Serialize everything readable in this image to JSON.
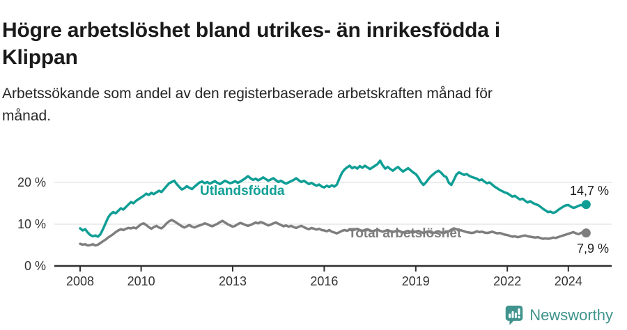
{
  "header": {
    "title_lines": [
      "Högre arbetslöshet bland utrikes- än inrikesfödda i",
      "Klippan"
    ],
    "subtitle_lines": [
      "Arbetssökande som andel av den registerbaserade arbetskraften månad för",
      "månad."
    ]
  },
  "footer": {
    "brand": "Newsworthy",
    "logo_icon": "bar-chart-speech-bubble-icon",
    "brand_color": "#40948d"
  },
  "chart_data": {
    "type": "line",
    "title": "",
    "xlabel": "",
    "ylabel": "",
    "y_unit": "%",
    "frequency": "monthly",
    "start": "2008-01",
    "end": "2024-08",
    "x_start_year": 2008,
    "x_tick_years": [
      2008,
      2010,
      2013,
      2016,
      2019,
      2022,
      2024
    ],
    "x_tick_labels": [
      "2008",
      "2010",
      "2013",
      "2016",
      "2019",
      "2022",
      "2024"
    ],
    "y_ticks": [
      0,
      10,
      20
    ],
    "y_tick_suffix": " %",
    "ylim": [
      0,
      27
    ],
    "grid": "horizontal",
    "legend_position": "inline-on-line",
    "colors": {
      "axis": "#2f2f2f",
      "grid": "#d8d8d8",
      "tick_text": "#333333",
      "value_label": "#1a1a1a"
    },
    "series": [
      {
        "name": "Utlandsfödda",
        "color": "#0f9e95",
        "end_value": 14.7,
        "end_label": "14,7 %",
        "values": [
          9.0,
          8.5,
          8.8,
          8.0,
          7.4,
          7.1,
          7.3,
          7.0,
          7.6,
          8.8,
          10.2,
          11.6,
          12.4,
          12.9,
          12.6,
          13.2,
          13.8,
          13.5,
          14.1,
          14.7,
          15.3,
          15.0,
          15.6,
          16.0,
          16.4,
          16.8,
          17.3,
          17.0,
          17.5,
          17.2,
          17.6,
          18.0,
          17.7,
          18.4,
          19.1,
          19.8,
          20.1,
          20.4,
          19.6,
          18.9,
          18.3,
          18.6,
          19.1,
          18.7,
          18.4,
          19.0,
          19.5,
          20.0,
          20.2,
          19.8,
          20.1,
          19.7,
          20.0,
          20.3,
          19.9,
          19.6,
          20.0,
          20.4,
          20.1,
          19.8,
          20.0,
          20.3,
          19.9,
          20.2,
          20.6,
          21.0,
          21.5,
          21.0,
          20.6,
          20.9,
          20.5,
          20.8,
          21.2,
          20.8,
          20.4,
          20.7,
          21.0,
          20.5,
          20.1,
          20.4,
          20.0,
          19.7,
          20.0,
          20.3,
          20.6,
          21.0,
          20.5,
          20.1,
          20.4,
          20.0,
          19.6,
          19.9,
          19.5,
          19.2,
          19.5,
          19.0,
          18.8,
          19.2,
          18.9,
          19.3,
          19.0,
          19.5,
          21.0,
          22.3,
          23.1,
          23.6,
          24.0,
          23.4,
          23.7,
          23.3,
          23.9,
          23.5,
          24.0,
          23.6,
          23.2,
          23.6,
          24.0,
          24.4,
          25.2,
          24.1,
          23.3,
          23.7,
          23.2,
          22.8,
          23.3,
          23.7,
          23.1,
          22.6,
          23.0,
          23.4,
          22.9,
          22.4,
          22.0,
          21.2,
          20.1,
          19.4,
          20.0,
          20.8,
          21.5,
          22.0,
          22.5,
          22.8,
          22.3,
          21.6,
          21.3,
          19.9,
          19.4,
          20.6,
          21.9,
          22.4,
          22.1,
          21.8,
          22.0,
          21.6,
          21.3,
          21.1,
          20.9,
          20.5,
          20.7,
          20.2,
          19.8,
          20.0,
          19.5,
          19.0,
          18.6,
          18.2,
          17.9,
          17.6,
          17.4,
          17.0,
          16.6,
          16.8,
          16.3,
          15.9,
          16.1,
          15.6,
          15.2,
          15.5,
          15.1,
          14.8,
          14.6,
          14.2,
          13.7,
          13.3,
          12.9,
          13.0,
          12.7,
          12.9,
          13.4,
          13.8,
          14.2,
          14.5,
          14.6,
          14.2,
          13.9,
          14.1,
          14.4,
          14.6,
          14.4,
          14.7
        ]
      },
      {
        "name": "Total arbetslöshet",
        "color": "#7e7e7e",
        "end_value": 7.9,
        "end_label": "7,9 %",
        "values": [
          5.3,
          5.1,
          5.2,
          4.9,
          5.0,
          5.2,
          4.9,
          5.1,
          5.5,
          5.9,
          6.3,
          6.8,
          7.2,
          7.6,
          8.1,
          8.5,
          8.8,
          8.6,
          8.9,
          9.1,
          9.0,
          9.2,
          9.0,
          9.5,
          10.0,
          10.2,
          9.8,
          9.3,
          8.9,
          9.3,
          9.6,
          9.2,
          9.0,
          9.5,
          10.2,
          10.7,
          11.0,
          10.7,
          10.3,
          9.9,
          9.5,
          9.2,
          9.5,
          9.8,
          9.4,
          9.2,
          9.5,
          9.7,
          9.9,
          10.2,
          10.0,
          9.7,
          9.5,
          9.8,
          10.1,
          10.5,
          10.8,
          10.4,
          10.0,
          9.7,
          9.4,
          9.6,
          10.0,
          10.3,
          10.1,
          9.8,
          9.6,
          9.8,
          10.1,
          10.4,
          10.2,
          10.5,
          10.3,
          10.0,
          9.7,
          9.9,
          10.2,
          10.4,
          10.1,
          9.8,
          9.5,
          9.7,
          9.4,
          9.6,
          9.3,
          9.1,
          9.4,
          9.6,
          9.3,
          9.0,
          8.8,
          9.1,
          8.9,
          8.7,
          8.9,
          8.6,
          8.5,
          8.3,
          8.6,
          8.2,
          8.0,
          7.8,
          8.1,
          8.4,
          8.6,
          8.4,
          8.7,
          8.5,
          8.7,
          8.9,
          8.6,
          8.4,
          8.6,
          8.8,
          8.5,
          8.3,
          8.5,
          8.7,
          8.4,
          8.2,
          8.4,
          8.6,
          8.3,
          8.1,
          8.3,
          8.5,
          8.2,
          8.0,
          8.2,
          8.4,
          8.1,
          8.0,
          8.2,
          8.4,
          8.1,
          7.9,
          8.1,
          8.3,
          8.0,
          7.9,
          8.1,
          8.3,
          8.0,
          7.9,
          8.1,
          8.3,
          8.7,
          9.0,
          8.8,
          8.6,
          8.5,
          8.3,
          8.1,
          8.0,
          7.9,
          8.0,
          8.3,
          8.1,
          8.2,
          8.0,
          7.9,
          8.0,
          8.2,
          8.0,
          7.8,
          7.9,
          7.7,
          7.5,
          7.4,
          7.2,
          7.0,
          7.1,
          6.9,
          7.0,
          7.2,
          7.3,
          7.1,
          7.0,
          6.9,
          6.8,
          6.9,
          6.7,
          6.5,
          6.6,
          6.5,
          6.6,
          6.8,
          6.7,
          6.9,
          7.1,
          7.3,
          7.5,
          7.7,
          7.9,
          8.1,
          7.8,
          7.6,
          7.9,
          8.2,
          7.9
        ]
      }
    ]
  }
}
